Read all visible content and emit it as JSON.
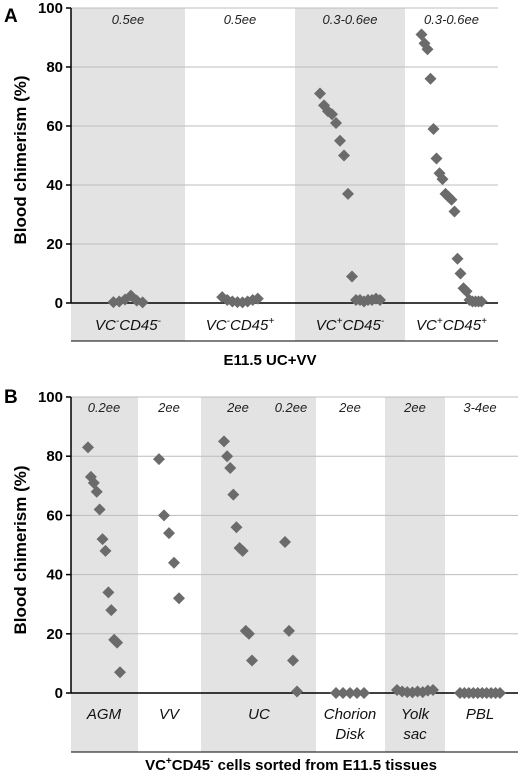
{
  "chart_data": [
    {
      "panel": "A",
      "type": "scatter",
      "ylabel": "Blood chimerism (%)",
      "xlabel": "E11.5 UC+VV",
      "ylim": [
        0,
        100
      ],
      "yticks": [
        0,
        20,
        40,
        60,
        80,
        100
      ],
      "grid": true,
      "shade_color": "#e3e3e3",
      "marker_color": "#6b6b6b",
      "categories": [
        {
          "label": "VC",
          "sup1": "-",
          "label2": "CD45",
          "sup2": "-",
          "annotation": "0.5ee",
          "shaded": true,
          "points": [
            0.3,
            0.5,
            1.2,
            2.5,
            0.8,
            0.2
          ]
        },
        {
          "label": "VC",
          "sup1": "-",
          "label2": "CD45",
          "sup2": "+",
          "annotation": "0.5ee",
          "shaded": false,
          "points": [
            2,
            1,
            0.5,
            0.3,
            0.2,
            0.5,
            1,
            1.5
          ]
        },
        {
          "label": "VC",
          "sup1": "+",
          "label2": "CD45",
          "sup2": "-",
          "annotation": "0.3-0.6ee",
          "shaded": true,
          "points": [
            71,
            67,
            65,
            64,
            61,
            55,
            50,
            37,
            9,
            1,
            1,
            0.5,
            1,
            1,
            1.5,
            1
          ]
        },
        {
          "label": "VC",
          "sup1": "+",
          "label2": "CD45",
          "sup2": "+",
          "annotation": "0.3-0.6ee",
          "shaded": false,
          "points": [
            91,
            88,
            86,
            76,
            59,
            49,
            44,
            42,
            37,
            36,
            35,
            31,
            15,
            10,
            5,
            4,
            1,
            0.5,
            0.5,
            0.5,
            0.5
          ]
        }
      ]
    },
    {
      "panel": "B",
      "type": "scatter",
      "ylabel": "Blood chimerism (%)",
      "xlabel": "VC+CD45- cells sorted from E11.5 tissues",
      "xlabel_parts": [
        "VC",
        "+",
        "CD45",
        "-",
        " cells sorted from E11.5 tissues"
      ],
      "ylim": [
        0,
        100
      ],
      "yticks": [
        0,
        20,
        40,
        60,
        80,
        100
      ],
      "grid": true,
      "shade_color": "#e3e3e3",
      "marker_color": "#6b6b6b",
      "categories": [
        {
          "annotation": "0.2ee",
          "shaded": true,
          "points": [
            83,
            73,
            71,
            68,
            62,
            52,
            48,
            34,
            28,
            18,
            17,
            7
          ]
        },
        {
          "annotation": "2ee",
          "shaded": false,
          "points": [
            79,
            60,
            54,
            44,
            32
          ]
        },
        {
          "annotation": "2ee",
          "shaded": true,
          "points": [
            85,
            80,
            76,
            67,
            56,
            49,
            48,
            21,
            20,
            11
          ]
        },
        {
          "annotation": "0.2ee",
          "shaded": true,
          "points": [
            51,
            21,
            11,
            0.5
          ]
        },
        {
          "annotation": "2ee",
          "shaded": false,
          "points": [
            0,
            0,
            0,
            0,
            0
          ]
        },
        {
          "annotation": "2ee",
          "shaded": true,
          "points": [
            1,
            0.5,
            0.3,
            0.2,
            0.5,
            0.3,
            0.8,
            1
          ]
        },
        {
          "annotation": "3-4ee",
          "shaded": false,
          "points": [
            0,
            0,
            0,
            0,
            0,
            0,
            0,
            0,
            0,
            0
          ]
        }
      ],
      "group_labels": [
        {
          "lines": [
            "AGM"
          ]
        },
        {
          "lines": [
            "VV"
          ]
        },
        {
          "lines": [
            "UC"
          ]
        },
        {
          "lines": [
            "Chorion",
            "Disk"
          ]
        },
        {
          "lines": [
            "Yolk",
            "sac"
          ]
        },
        {
          "lines": [
            "PBL"
          ]
        }
      ]
    }
  ]
}
